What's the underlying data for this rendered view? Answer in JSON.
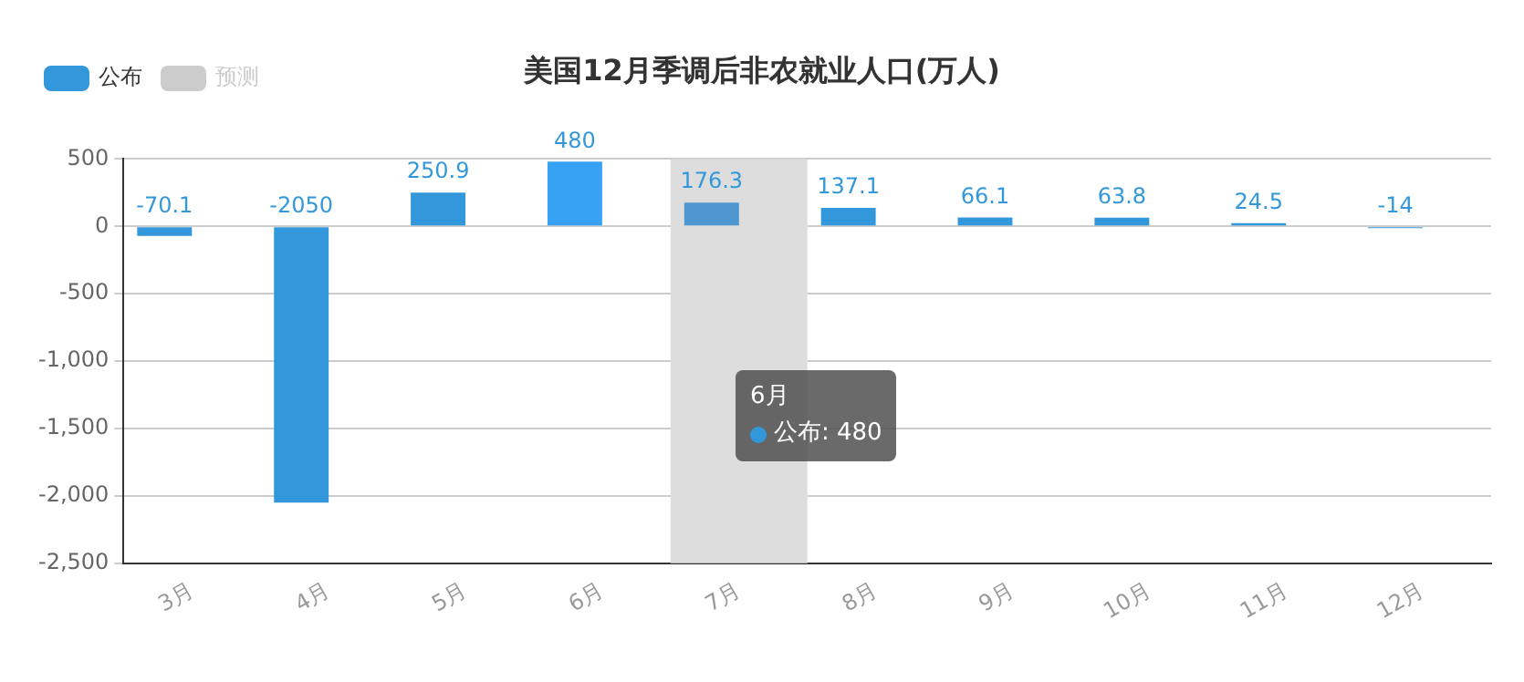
{
  "chart_data": {
    "type": "bar",
    "title": "美国12月季调后非农就业人口(万人)",
    "categories": [
      "3月",
      "4月",
      "5月",
      "6月",
      "7月",
      "8月",
      "9月",
      "10月",
      "11月",
      "12月"
    ],
    "series": [
      {
        "name": "公布",
        "color": "#3398db",
        "colors": [
          "#3398db",
          "#3398db",
          "#3398db",
          "#37a2f4",
          "#4d96cf",
          "#3398db",
          "#3398db",
          "#3398db",
          "#3398db",
          "#3398db"
        ],
        "values": [
          -70.1,
          -2050,
          250.9,
          480,
          176.3,
          137.1,
          66.1,
          63.8,
          24.5,
          -14
        ]
      },
      {
        "name": "预测",
        "color": "#cccccc",
        "values": [
          null,
          null,
          null,
          null,
          null,
          null,
          null,
          null,
          null,
          null
        ]
      }
    ],
    "ylim": [
      -2500,
      500
    ],
    "yticks": [
      {
        "value": -2500,
        "label": "-2,500"
      },
      {
        "value": -2000,
        "label": "-2,000"
      },
      {
        "value": -1500,
        "label": "-1,500"
      },
      {
        "value": -1000,
        "label": "-1,000"
      },
      -500,
      0,
      500
    ],
    "bands": [
      {
        "axis": "x",
        "from": "7月",
        "to": "7月",
        "color": "#dddddd"
      }
    ],
    "annotations": [
      "6月",
      "公布: 480"
    ],
    "data_labels": true,
    "grid": "y",
    "legend": "top left"
  }
}
